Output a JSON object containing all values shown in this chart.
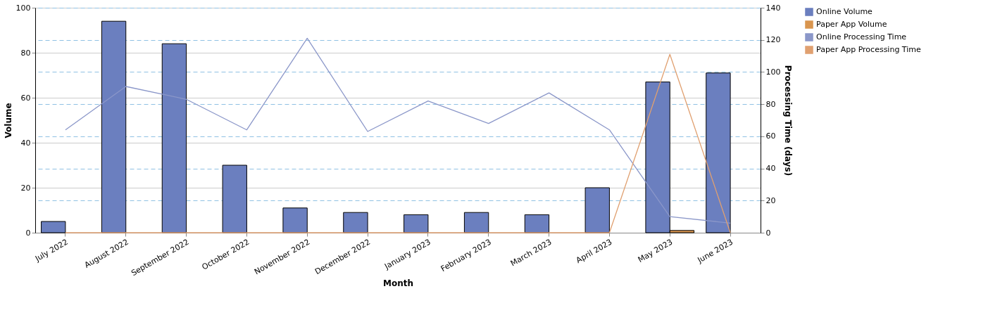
{
  "chart_data": {
    "type": "bar",
    "xlabel": "Month",
    "ylabel": "Volume",
    "y2label": "Processing Time (days)",
    "categories": [
      "July 2022",
      "August 2022",
      "September 2022",
      "October 2022",
      "November 2022",
      "December 2022",
      "January 2023",
      "February 2023",
      "March 2023",
      "April 2023",
      "May 2023",
      "June 2023"
    ],
    "series": [
      {
        "name": "Online Volume",
        "color": "#6b7fbf",
        "values": [
          5,
          94,
          84,
          30,
          11,
          9,
          8,
          9,
          8,
          20,
          67,
          71
        ]
      },
      {
        "name": "Paper App Volume",
        "color": "#d9954f",
        "values": [
          0,
          0,
          0,
          0,
          0,
          0,
          0,
          0,
          0,
          0,
          1,
          0
        ]
      },
      {
        "name": "Online Processing Time",
        "type": "line",
        "axis": "y2",
        "color": "#8b97c9",
        "values": [
          64,
          91,
          83,
          64,
          121,
          63,
          82,
          68,
          87,
          64,
          10,
          6
        ]
      },
      {
        "name": "Paper App Processing Time",
        "type": "line",
        "axis": "y2",
        "color": "#e0a070",
        "values": [
          0,
          0,
          0,
          0,
          0,
          0,
          0,
          0,
          0,
          0,
          111,
          0
        ]
      }
    ],
    "ylim": [
      0,
      100
    ],
    "yticks": [
      0,
      20,
      40,
      60,
      80,
      100
    ],
    "y2lim": [
      0,
      140
    ],
    "y2ticks": [
      0,
      20,
      40,
      60,
      80,
      100,
      120,
      140
    ],
    "grid": true,
    "legend": "top right"
  }
}
